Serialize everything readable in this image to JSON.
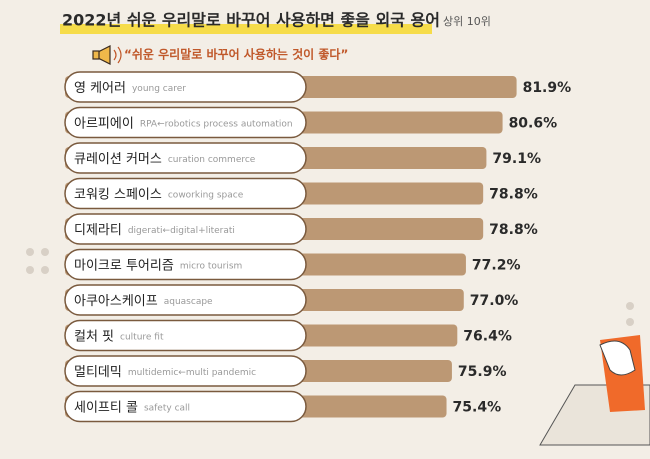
{
  "chart_data": {
    "type": "bar",
    "orientation": "horizontal",
    "title": "2022년 쉬운 우리말로 바꾸어 사용하면 좋을 외국 용어",
    "subtitle": "상위 10위",
    "annotation": "“쉬운 우리말로 바꾸어 사용하는 것이 좋다”",
    "categories": [
      "영 케어러",
      "아르피에이",
      "큐레이션 커머스",
      "코워킹 스페이스",
      "디제라티",
      "마이크로 투어리즘",
      "아쿠아스케이프",
      "컬처 핏",
      "멀티데믹",
      "세이프티 콜"
    ],
    "descriptions": [
      "young carer",
      "RPA←robotics process automation",
      "curation commerce",
      "coworking space",
      "digerati←digital+literati",
      "micro tourism",
      "aquascape",
      "culture fit",
      "multidemic←multi pandemic",
      "safety call"
    ],
    "values": [
      81.9,
      80.6,
      79.1,
      78.8,
      78.8,
      77.2,
      77.0,
      76.4,
      75.9,
      75.4
    ],
    "value_labels": [
      "81.9%",
      "80.6%",
      "79.1%",
      "78.8%",
      "78.8%",
      "77.2%",
      "77.0%",
      "76.4%",
      "75.9%",
      "75.4%"
    ],
    "xlim": [
      40,
      85
    ],
    "color": "#bc9874"
  }
}
